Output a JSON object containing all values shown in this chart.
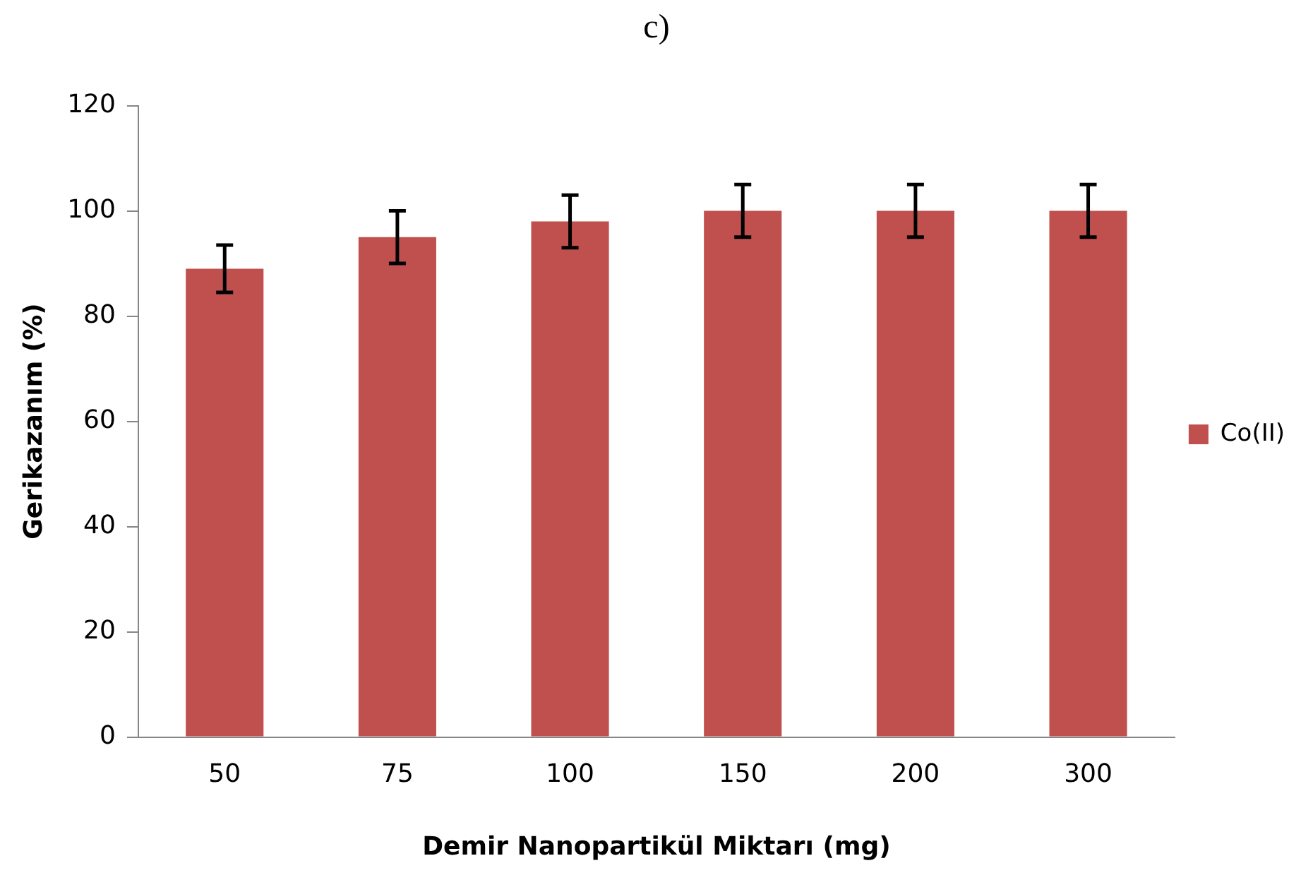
{
  "chart_data": {
    "type": "bar",
    "title": "c)",
    "xlabel": "Demir Nanopartikül Miktarı (mg)",
    "ylabel": "Gerikazanım (%)",
    "categories": [
      "50",
      "75",
      "100",
      "150",
      "200",
      "300"
    ],
    "series": [
      {
        "name": "Co(II)",
        "color": "#c0504d",
        "values": [
          89,
          95,
          98,
          100,
          100,
          100
        ],
        "errors": [
          4.5,
          5,
          5,
          5,
          5,
          5
        ]
      }
    ],
    "ylim": [
      0,
      120
    ],
    "yticks": [
      0,
      20,
      40,
      60,
      80,
      100,
      120
    ],
    "grid": false,
    "legend": "right"
  }
}
